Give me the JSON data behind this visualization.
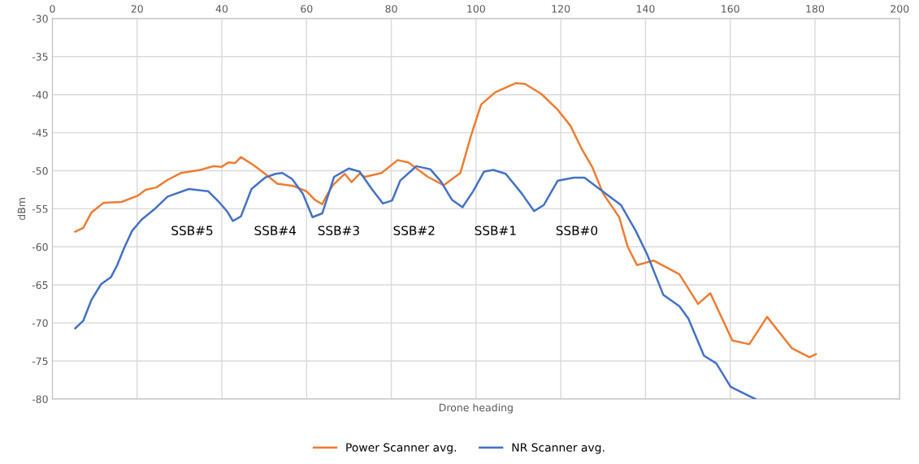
{
  "chart_data": {
    "type": "line",
    "xlabel": "Drone heading",
    "ylabel": "dBm",
    "xlim": [
      0,
      200
    ],
    "xticks": [
      0,
      20,
      40,
      60,
      80,
      100,
      120,
      140,
      160,
      180,
      200
    ],
    "ylim": [
      -80,
      -30
    ],
    "yticks": [
      -80,
      -75,
      -70,
      -65,
      -60,
      -55,
      -50,
      -45,
      -40,
      -35,
      -30
    ],
    "grid": true,
    "legend": "bottom",
    "marker": "none",
    "line_style": "solid",
    "series": [
      {
        "name": "Power Scanner avg.",
        "color": "#ed7d31",
        "x": [
          5.4,
          7.3,
          9.2,
          12.1,
          16.3,
          20.1,
          22,
          24.5,
          27.2,
          30.3,
          34.9,
          38,
          39.9,
          41.6,
          43.1,
          44.5,
          47.6,
          50.2,
          53.1,
          56.9,
          60,
          61.9,
          63.7,
          64.6,
          66.2,
          69,
          70.6,
          72.5,
          73.8,
          77.7,
          81.5,
          84,
          88.6,
          92.4,
          96.3,
          98.8,
          101.2,
          104.5,
          109.3,
          111.6,
          115.4,
          119.3,
          122.3,
          125,
          127.5,
          130,
          133.8,
          135.8,
          138,
          141.9,
          148,
          152.4,
          155.3,
          160.5,
          164.5,
          168.7,
          174.5,
          178.7,
          180.2
        ],
        "values": [
          -58,
          -57.5,
          -55.5,
          -54.2,
          -54.1,
          -53.3,
          -52.5,
          -52.2,
          -51.2,
          -50.3,
          -49.9,
          -49.4,
          -49.5,
          -48.9,
          -49,
          -48.2,
          -49.3,
          -50.4,
          -51.7,
          -52,
          -52.7,
          -53.8,
          -54.4,
          -53.4,
          -51.9,
          -50.4,
          -51.5,
          -50.4,
          -50.8,
          -50.3,
          -48.6,
          -48.9,
          -50.8,
          -51.9,
          -50.3,
          -45.4,
          -41.3,
          -39.7,
          -38.5,
          -38.6,
          -39.9,
          -42,
          -44.1,
          -47.2,
          -49.6,
          -53,
          -56.1,
          -60,
          -62.4,
          -61.8,
          -63.6,
          -67.5,
          -66.1,
          -72.3,
          -72.8,
          -69.2,
          -73.3,
          -74.5,
          -74.1
        ]
      },
      {
        "name": "NR Scanner avg.",
        "color": "#4472c4",
        "x": [
          5.4,
          7.3,
          9.2,
          11.5,
          13.8,
          15.3,
          16.9,
          18.8,
          21.1,
          24,
          27.2,
          32.2,
          36.8,
          39.3,
          41.2,
          42.6,
          44.5,
          47,
          50.2,
          52.7,
          54.3,
          56.6,
          59.1,
          61.4,
          63.7,
          66.5,
          70,
          72.5,
          75.4,
          78,
          80.2,
          82.1,
          85.9,
          89.2,
          91.7,
          94.3,
          96.8,
          99.3,
          101.9,
          104.1,
          107,
          110.8,
          113.7,
          116,
          119.3,
          123.1,
          125.6,
          129.4,
          134.2,
          137.7,
          140.4,
          144.2,
          148,
          150.1,
          153.8,
          156.7,
          160.1,
          165.9
        ],
        "values": [
          -70.7,
          -69.7,
          -67,
          -64.9,
          -64,
          -62.4,
          -60.2,
          -57.9,
          -56.4,
          -55.1,
          -53.4,
          -52.4,
          -52.7,
          -54.1,
          -55.3,
          -56.6,
          -56,
          -52.4,
          -50.9,
          -50.4,
          -50.3,
          -51.1,
          -53,
          -56.1,
          -55.6,
          -50.8,
          -49.7,
          -50.1,
          -52.4,
          -54.3,
          -53.9,
          -51.3,
          -49.4,
          -49.8,
          -51.4,
          -53.8,
          -54.8,
          -52.7,
          -50.1,
          -49.9,
          -50.4,
          -53,
          -55.3,
          -54.5,
          -51.3,
          -50.9,
          -50.9,
          -52.5,
          -54.5,
          -57.9,
          -61,
          -66.3,
          -67.8,
          -69.4,
          -74.3,
          -75.3,
          -78.4,
          -80
        ]
      }
    ],
    "annotations": [
      "SSB#5",
      "SSB#4",
      "SSB#3",
      "SSB#2",
      "SSB#1",
      "SSB#0"
    ]
  }
}
